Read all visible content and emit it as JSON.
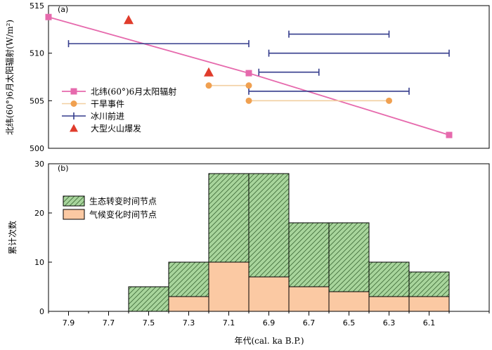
{
  "chart_data": [
    {
      "type": "line",
      "panel_label": "(a)",
      "ylabel": "北纬(60°)6月太阳辐射(W/m²)",
      "ylim": [
        500,
        515
      ],
      "yticks": [
        500,
        505,
        510,
        515
      ],
      "xlim": [
        8.0,
        5.8
      ],
      "legend": {
        "placement": "left",
        "entries": [
          {
            "label": "北纬(60°)6月太阳辐射",
            "color": "#e66aad",
            "marker": "square"
          },
          {
            "label": "干旱事件",
            "color": "#f0a050",
            "marker": "circle"
          },
          {
            "label": "冰川前进",
            "color": "#343c8c",
            "marker": "bar"
          },
          {
            "label": "大型火山爆发",
            "color": "#e03c2c",
            "marker": "triangle"
          }
        ]
      },
      "insolation": {
        "color": "#e66aad",
        "points": [
          [
            8.0,
            513.8
          ],
          [
            7.0,
            507.9
          ],
          [
            6.0,
            501.4
          ]
        ]
      },
      "drought": {
        "color": "#f0a050",
        "line_color": "#f2cfa0",
        "events": [
          [
            7.2,
            7.0,
            506.6
          ],
          [
            7.0,
            6.3,
            505.0
          ]
        ]
      },
      "glacier": {
        "color": "#343c8c",
        "events": [
          [
            7.9,
            7.0,
            511.0
          ],
          [
            6.8,
            6.3,
            512.0
          ],
          [
            6.9,
            6.0,
            510.0
          ],
          [
            6.95,
            6.65,
            508.0
          ],
          [
            7.0,
            6.2,
            506.0
          ]
        ]
      },
      "volcano": {
        "color": "#e03c2c",
        "points": [
          [
            7.6,
            513.5
          ],
          [
            7.2,
            508.0
          ]
        ]
      }
    },
    {
      "type": "bar",
      "stacked": true,
      "panel_label": "(b)",
      "ylabel": "累计次数",
      "xlabel": "年代(cal. ka B.P.)",
      "ylim": [
        0,
        30
      ],
      "yticks": [
        0,
        10,
        20,
        30
      ],
      "xlim": [
        8.0,
        5.8
      ],
      "xticks": [
        "7.9",
        "7.7",
        "7.5",
        "7.3",
        "7.1",
        "6.9",
        "6.7",
        "6.5",
        "6.3",
        "6.1"
      ],
      "legend": {
        "placement": "top-left",
        "entries": [
          {
            "label": "生态转变时间节点",
            "color": "#a8d59c",
            "hatch": true
          },
          {
            "label": "气候变化时间节点",
            "color": "#fbc9a3",
            "hatch": false
          }
        ]
      },
      "bins": [
        [
          7.6,
          7.4
        ],
        [
          7.4,
          7.2
        ],
        [
          7.2,
          7.0
        ],
        [
          7.0,
          6.8
        ],
        [
          6.8,
          6.6
        ],
        [
          6.6,
          6.4
        ],
        [
          6.4,
          6.2
        ],
        [
          6.2,
          6.0
        ]
      ],
      "totals": [
        5,
        10,
        28,
        28,
        18,
        18,
        10,
        8
      ],
      "climate": [
        0,
        3,
        10,
        7,
        5,
        4,
        3,
        3
      ]
    }
  ]
}
